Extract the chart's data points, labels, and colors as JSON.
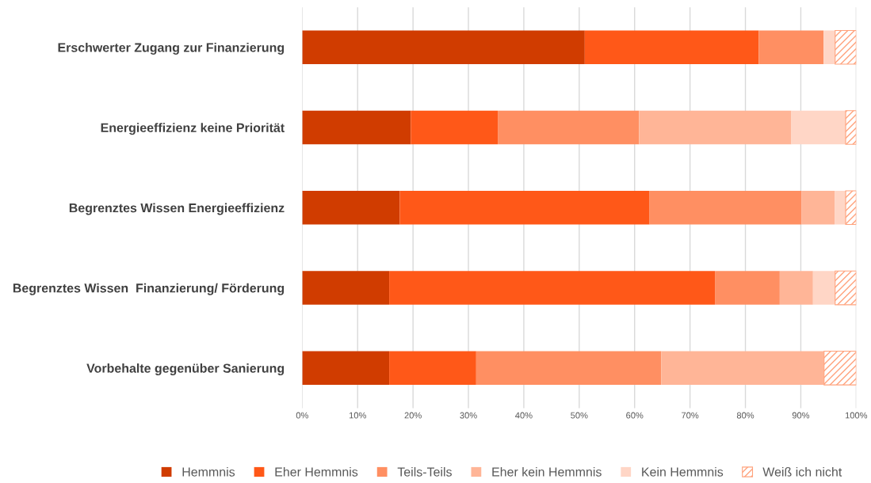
{
  "chart_data": {
    "type": "bar",
    "orientation": "horizontal",
    "stacked": true,
    "categories": [
      "Erschwerter Zugang zur Finanzierung",
      "Energieeffizienz keine Priorität",
      "Begrenztes Wissen Energieeffizienz",
      "Begrenztes Wissen  Finanzierung/ Förderung",
      "Vorbehalte gegenüber Sanierung"
    ],
    "series": [
      {
        "name": "Hemmnis",
        "color": "#d03c00",
        "values": [
          51.0,
          19.6,
          17.6,
          15.7,
          15.7
        ]
      },
      {
        "name": "Eher Hemmnis",
        "color": "#ff5818",
        "values": [
          31.4,
          15.7,
          45.1,
          58.8,
          15.7
        ]
      },
      {
        "name": "Teils-Teils",
        "color": "#ff8f62",
        "values": [
          11.7,
          25.5,
          27.4,
          11.7,
          33.4
        ]
      },
      {
        "name": "Eher kein Hemmnis",
        "color": "#ffb597",
        "values": [
          0,
          27.5,
          6.0,
          6.0,
          29.4
        ]
      },
      {
        "name": "Kein Hemmnis",
        "color": "#ffd6c6",
        "values": [
          2.1,
          9.8,
          2.0,
          4.0,
          0
        ]
      },
      {
        "name": "Weiß ich nicht",
        "color": "#ffa27c",
        "values": [
          3.8,
          1.9,
          1.9,
          3.8,
          5.8
        ]
      }
    ],
    "xlim": [
      0,
      100
    ],
    "xticks": [
      {
        "value": 0,
        "label": "0%"
      },
      {
        "value": 10,
        "label": "10%"
      },
      {
        "value": 20,
        "label": "20%"
      },
      {
        "value": 30,
        "label": "30%"
      },
      {
        "value": 40,
        "label": "40%"
      },
      {
        "value": 50,
        "label": "50%"
      },
      {
        "value": 60,
        "label": "60%"
      },
      {
        "value": 70,
        "label": "70%"
      },
      {
        "value": 80,
        "label": "80%"
      },
      {
        "value": 90,
        "label": "90%"
      },
      {
        "value": 100,
        "label": "100%"
      }
    ],
    "grid": "x",
    "legend": "bottom"
  }
}
